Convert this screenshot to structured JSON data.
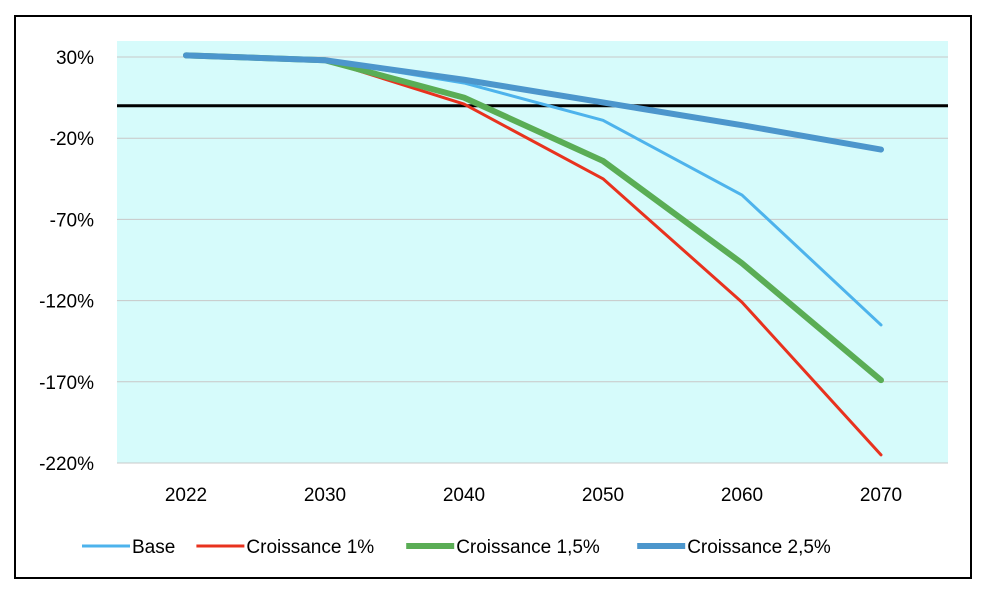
{
  "chart_data": {
    "type": "line",
    "title": "",
    "xlabel": "",
    "ylabel": "",
    "categories": [
      "2022",
      "2030",
      "2040",
      "2050",
      "2060",
      "2070"
    ],
    "ylim": [
      -220,
      40
    ],
    "yticks": [
      30,
      -20,
      -70,
      -120,
      -170,
      -220
    ],
    "ytick_labels": [
      "30%",
      "-20%",
      "-70%",
      "-120%",
      "-170%",
      "-220%"
    ],
    "reference_line": 0,
    "grid": true,
    "legend_position": "bottom",
    "plot_background": "#d6fbfb",
    "series": [
      {
        "name": "Base",
        "color": "#4db3ec",
        "width": 3,
        "values": [
          31,
          28,
          14,
          -9,
          -55,
          -135
        ]
      },
      {
        "name": "Croissance 1%",
        "color": "#e8321e",
        "width": 3,
        "values": [
          31,
          28,
          1,
          -45,
          -121,
          -215
        ]
      },
      {
        "name": "Croissance 1,5%",
        "color": "#5aad55",
        "width": 6,
        "values": [
          31,
          28,
          5,
          -34,
          -97,
          -169
        ]
      },
      {
        "name": "Croissance 2,5%",
        "color": "#4c96cc",
        "width": 6,
        "values": [
          31,
          28,
          16,
          2,
          -12,
          -27
        ]
      }
    ]
  }
}
